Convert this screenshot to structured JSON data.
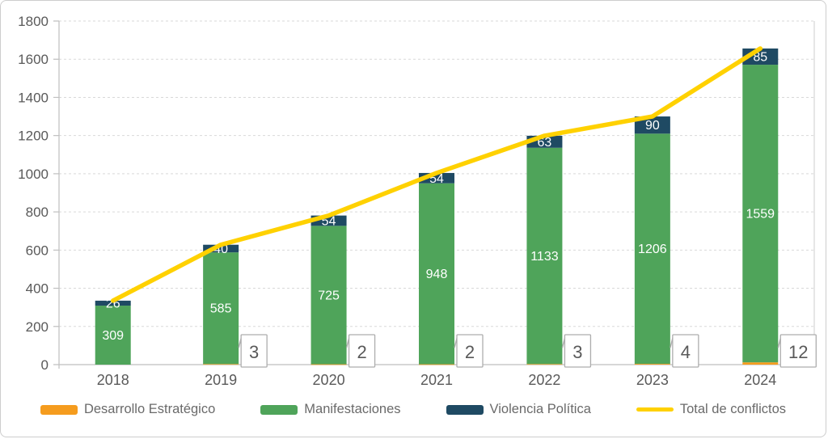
{
  "chart_data": {
    "type": "bar",
    "subtype": "stacked-column-with-total-line",
    "title": "",
    "xlabel": "",
    "ylabel": "",
    "categories": [
      "2018",
      "2019",
      "2020",
      "2021",
      "2022",
      "2023",
      "2024"
    ],
    "series": [
      {
        "name": "Desarrollo Estratégico",
        "color": "#F59C1E",
        "values": [
          0,
          3,
          2,
          2,
          3,
          4,
          12
        ],
        "show_labels": false,
        "swatch": "rect"
      },
      {
        "name": "Manifestaciones",
        "color": "#4FA45A",
        "values": [
          309,
          585,
          725,
          948,
          1133,
          1206,
          1559
        ],
        "show_labels": true,
        "swatch": "rect"
      },
      {
        "name": "Violencia Política",
        "color": "#1F4A63",
        "values": [
          26,
          40,
          54,
          54,
          63,
          90,
          85
        ],
        "show_labels": true,
        "swatch": "rect"
      }
    ],
    "line": {
      "name": "Total de conflictos",
      "color": "#FFD100",
      "values": [
        335,
        628,
        781,
        1004,
        1199,
        1300,
        1656
      ],
      "swatch": "line"
    },
    "callouts": [
      null,
      "3",
      "2",
      "2",
      "3",
      "4",
      "12"
    ],
    "ylim": [
      0,
      1800
    ],
    "ytick_step": 200,
    "yticks": [
      "0",
      "200",
      "400",
      "600",
      "800",
      "1000",
      "1200",
      "1400",
      "1600",
      "1800"
    ],
    "grid": "dashed-horizontal",
    "legend_position": "bottom"
  },
  "style": {
    "grid_color": "#d9d9d9",
    "axis_color": "#bfbfbf",
    "tick_label_color": "#595959",
    "bar_label_color": "#ffffff",
    "callout_border_color": "#adadad",
    "callout_text_color": "#595959",
    "plot_right_border_color": "#cccccc"
  }
}
